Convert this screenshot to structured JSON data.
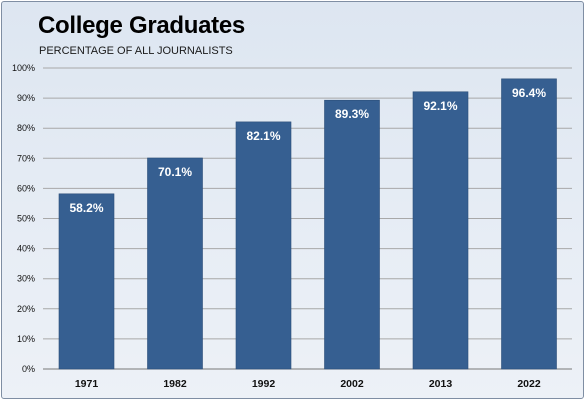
{
  "chart_data": {
    "type": "bar",
    "title": "College Graduates",
    "subtitle": "PERCENTAGE OF ALL JOURNALISTS",
    "categories": [
      "1971",
      "1982",
      "1992",
      "2002",
      "2013",
      "2022"
    ],
    "values": [
      58.2,
      70.1,
      82.1,
      89.3,
      92.1,
      96.4
    ],
    "data_labels": [
      "58.2%",
      "70.1%",
      "82.1%",
      "89.3%",
      "92.1%",
      "96.4%"
    ],
    "ylim": [
      0,
      100
    ],
    "yticks": [
      "0%",
      "10%",
      "20%",
      "30%",
      "40%",
      "50%",
      "60%",
      "70%",
      "80%",
      "90%",
      "100%"
    ],
    "grid": true,
    "legend": "none",
    "bar_color": "#365f91"
  }
}
